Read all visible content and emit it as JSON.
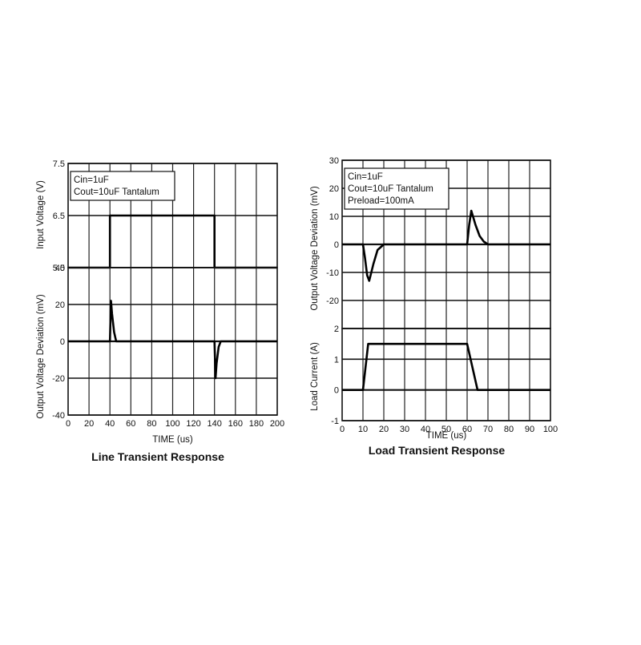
{
  "chart_data": [
    {
      "type": "line",
      "title": "Line Transient Response",
      "xlabel": "TIME (us)",
      "x_ticks": [
        "0",
        "20",
        "40",
        "60",
        "80",
        "100",
        "120",
        "140",
        "160",
        "180",
        "200"
      ],
      "xlim": [
        0,
        200
      ],
      "grid": true,
      "panels": [
        {
          "ylabel": "Input Voltage (V)",
          "ylim": [
            5.5,
            7.5
          ],
          "y_ticks": [
            "7.5",
            "6.5",
            "5.5"
          ],
          "y_tick_values": [
            7.5,
            6.5,
            5.5
          ],
          "legend": [
            "Cin=1uF",
            "Cout=10uF Tantalum"
          ],
          "legend_position": "top-left",
          "series": [
            {
              "x": [
                0,
                40,
                40,
                140,
                140,
                200
              ],
              "y": [
                5.5,
                5.5,
                6.5,
                6.5,
                5.5,
                5.5
              ]
            }
          ]
        },
        {
          "ylabel": "Output Voltage Deviation (mV)",
          "ylim": [
            -40,
            40
          ],
          "y_ticks": [
            "40",
            "20",
            "0",
            "-20",
            "-40"
          ],
          "y_tick_values": [
            40,
            20,
            0,
            -20,
            -40
          ],
          "series": [
            {
              "x": [
                0,
                40,
                41,
                42,
                44,
                46,
                140,
                141,
                142,
                144,
                146,
                200
              ],
              "y": [
                0,
                0,
                22,
                15,
                5,
                0,
                0,
                -20,
                -12,
                -3,
                0,
                0
              ]
            }
          ]
        }
      ]
    },
    {
      "type": "line",
      "title": "Load Transient Response",
      "xlabel": "TIME (us)",
      "x_ticks": [
        "0",
        "10",
        "20",
        "30",
        "40",
        "50",
        "60",
        "70",
        "80",
        "90",
        "100"
      ],
      "xlim": [
        0,
        100
      ],
      "grid": true,
      "panels": [
        {
          "ylabel": "Output Voltage Deviation (mV)",
          "ylim": [
            -30,
            30
          ],
          "y_ticks": [
            "30",
            "20",
            "10",
            "0",
            "-10",
            "-20"
          ],
          "y_tick_values": [
            30,
            20,
            10,
            0,
            -10,
            -20
          ],
          "legend": [
            "Cin=1uF",
            "Cout=10uF Tantalum",
            "Preload=100mA"
          ],
          "legend_position": "top-left",
          "series": [
            {
              "x": [
                0,
                10,
                11,
                12,
                13,
                15,
                17,
                20,
                60,
                61,
                62,
                64,
                66,
                68,
                70,
                100
              ],
              "y": [
                0,
                0,
                -5,
                -11,
                -13,
                -7,
                -2,
                0,
                0,
                7,
                12,
                7,
                3,
                1,
                0,
                0
              ]
            }
          ]
        },
        {
          "ylabel": "Load Current (A)",
          "ylim": [
            -1,
            2
          ],
          "y_ticks": [
            "2",
            "1",
            "0",
            "-1"
          ],
          "y_tick_values": [
            2,
            1,
            0,
            -1
          ],
          "series": [
            {
              "x": [
                0,
                10,
                12.5,
                60,
                65,
                100
              ],
              "y": [
                0,
                0,
                1.5,
                1.5,
                0,
                0
              ]
            }
          ]
        }
      ]
    }
  ]
}
